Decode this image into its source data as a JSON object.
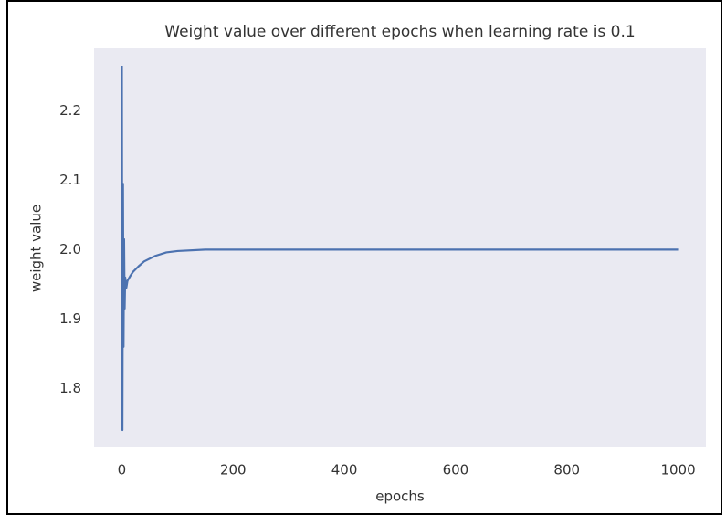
{
  "chart_data": {
    "type": "line",
    "title": "Weight value over different epochs when learning rate is 0.1",
    "xlabel": "epochs",
    "ylabel": "weight value",
    "x": [
      0,
      1,
      2,
      3,
      4,
      5,
      6,
      8,
      10,
      15,
      20,
      30,
      40,
      60,
      80,
      100,
      150,
      200,
      400,
      600,
      800,
      1000
    ],
    "series": [
      {
        "name": "weight",
        "color": "#4c72b0",
        "values": [
          2.265,
          1.74,
          2.095,
          1.86,
          2.015,
          1.915,
          1.96,
          1.945,
          1.955,
          1.962,
          1.968,
          1.976,
          1.983,
          1.991,
          1.996,
          1.998,
          2.0,
          2.0,
          2.0,
          2.0,
          2.0,
          2.0
        ]
      }
    ],
    "xlim": [
      -50,
      1050
    ],
    "xticks": [
      0,
      200,
      400,
      600,
      800,
      1000
    ],
    "ylim": [
      1.715,
      2.29
    ],
    "yticks": [
      {
        "value": 1.8,
        "label": "1.8"
      },
      {
        "value": 1.9,
        "label": "1.9"
      },
      {
        "value": 2,
        "label": "2.0"
      },
      {
        "value": 2.1,
        "label": "2.1"
      },
      {
        "value": 2.2,
        "label": "2.2"
      }
    ],
    "grid": false
  }
}
